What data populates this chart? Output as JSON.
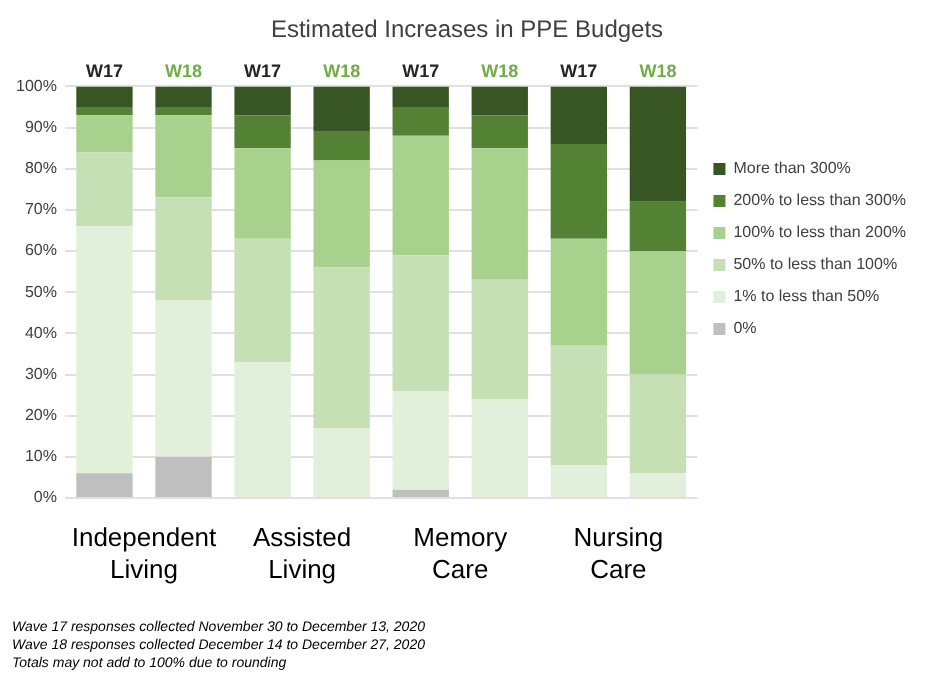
{
  "chart_data": {
    "type": "bar",
    "title": "Estimated Increases in PPE Budgets",
    "stacked": true,
    "categories": [
      "W17",
      "W18",
      "W17",
      "W18",
      "W17",
      "W18",
      "W17",
      "W18"
    ],
    "series": [
      {
        "name": "0%",
        "color": "#bfbfbf",
        "values": [
          6,
          10,
          0,
          0,
          2,
          0,
          0,
          0
        ]
      },
      {
        "name": "1% to less than 50%",
        "color": "#e2efda",
        "values": [
          60,
          38,
          33,
          17,
          24,
          24,
          8,
          6
        ]
      },
      {
        "name": "50% to less than 100%",
        "color": "#c5e0b4",
        "values": [
          18,
          25,
          30,
          39,
          33,
          29,
          29,
          24
        ]
      },
      {
        "name": "100% to less than 200%",
        "color": "#a9d18e",
        "values": [
          9,
          20,
          22,
          26,
          29,
          32,
          26,
          30
        ]
      },
      {
        "name": "200% to less than 300%",
        "color": "#548235",
        "values": [
          2,
          2,
          8,
          7,
          7,
          8,
          23,
          12
        ]
      },
      {
        "name": "More than 300%",
        "color": "#375623",
        "values": [
          5,
          5,
          7,
          11,
          5,
          7,
          14,
          28
        ]
      }
    ],
    "ylim": [
      0,
      100
    ],
    "yticks": [
      {
        "value": 0,
        "label": "0%"
      },
      {
        "value": 10,
        "label": "10%"
      },
      {
        "value": 20,
        "label": "20%"
      },
      {
        "value": 30,
        "label": "30%"
      },
      {
        "value": 40,
        "label": "40%"
      },
      {
        "value": 50,
        "label": "50%"
      },
      {
        "value": 60,
        "label": "60%"
      },
      {
        "value": 70,
        "label": "70%"
      },
      {
        "value": 80,
        "label": "80%"
      },
      {
        "value": 90,
        "label": "90%"
      },
      {
        "value": 100,
        "label": "100%"
      }
    ],
    "grid": "y",
    "legend": "right",
    "annotations": [
      "Independent Living",
      "Assisted Living",
      "Memory Care",
      "Nursing Care",
      "Wave 17 responses collected November 30 to December 13, 2020",
      "Wave 18 responses collected December 14 to December 27, 2020",
      "Totals may not add to 100% due to rounding"
    ]
  }
}
